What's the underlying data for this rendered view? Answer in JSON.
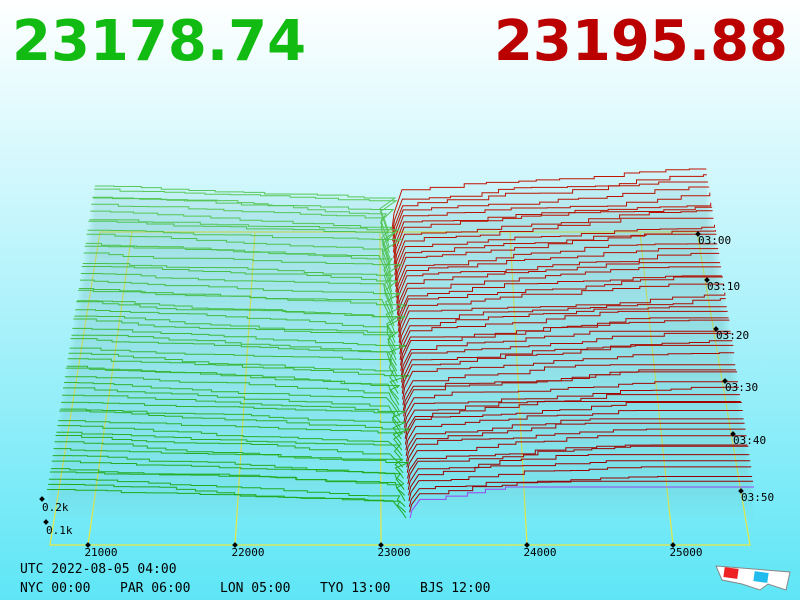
{
  "price": {
    "bid": "23178.74",
    "ask": "23195.88"
  },
  "price_axis": [
    "21000",
    "22000",
    "23000",
    "24000",
    "25000"
  ],
  "time_axis": [
    "03:00",
    "03:10",
    "03:20",
    "03:30",
    "03:40",
    "03:50"
  ],
  "depth_axis": [
    "0.2k",
    "0.1k"
  ],
  "clock": {
    "utc": "UTC 2022-08-05 04:00",
    "cities": [
      "NYC 00:00",
      "PAR 06:00",
      "LON 05:00",
      "TYO 13:00",
      "BJS 12:00"
    ]
  }
}
